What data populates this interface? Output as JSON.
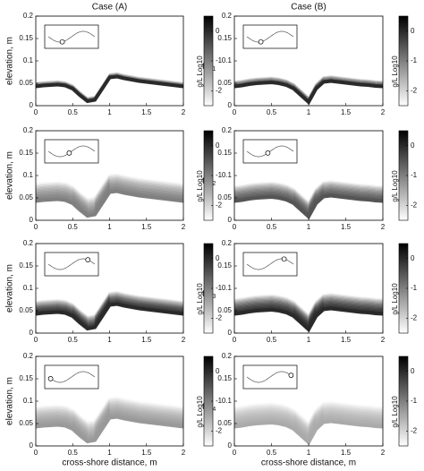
{
  "column_titles": [
    "Case (A)",
    "Case (B)"
  ],
  "time_labels": [
    {
      "main": "t=t",
      "sub": "1"
    },
    {
      "main": "t=t",
      "sub": "2"
    },
    {
      "main": "t=t",
      "sub": "3"
    },
    {
      "main": "t=t",
      "sub": "4"
    }
  ],
  "ylabel": "elevation, m",
  "xlabel": "cross-shore distance, m",
  "chart_data": [
    {
      "type": "density",
      "xlim": [
        0,
        2
      ],
      "xticks": [
        0,
        0.5,
        1,
        1.5,
        2
      ],
      "ylim": [
        0,
        0.2
      ],
      "yticks": [
        0,
        0.05,
        0.1,
        0.15,
        0.2
      ],
      "x": [
        0,
        0.1,
        0.2,
        0.3,
        0.4,
        0.5,
        0.6,
        0.7,
        0.8,
        0.9,
        1,
        1.1,
        1.2,
        1.3,
        1.4,
        1.5,
        1.6,
        1.7,
        1.8,
        1.9,
        2
      ],
      "values": [
        0.04,
        0.042,
        0.043,
        0.044,
        0.042,
        0.035,
        0.02,
        0.007,
        0.01,
        0.035,
        0.06,
        0.062,
        0.058,
        0.055,
        0.052,
        0.05,
        0.048,
        0.046,
        0.044,
        0.042,
        0.04
      ],
      "spread": 0.012,
      "intensity": 0,
      "colorbar": {
        "lim": [
          -2.5,
          0.5
        ],
        "ticks": [
          0,
          -1,
          -2
        ],
        "label": "g/L Log10"
      }
    },
    {
      "type": "density",
      "xlim": [
        0,
        2
      ],
      "xticks": [
        0,
        0.5,
        1,
        1.5,
        2
      ],
      "ylim": [
        0,
        0.2
      ],
      "yticks": [
        0,
        0.05,
        0.1,
        0.15,
        0.2
      ],
      "x": [
        0,
        0.1,
        0.2,
        0.3,
        0.4,
        0.5,
        0.6,
        0.7,
        0.8,
        0.9,
        1,
        1.1,
        1.2,
        1.3,
        1.4,
        1.5,
        1.6,
        1.7,
        1.8,
        1.9,
        2
      ],
      "values": [
        0.04,
        0.042,
        0.045,
        0.047,
        0.048,
        0.049,
        0.047,
        0.043,
        0.035,
        0.02,
        0.005,
        0.035,
        0.05,
        0.052,
        0.05,
        0.048,
        0.046,
        0.044,
        0.043,
        0.041,
        0.04
      ],
      "spread": 0.015,
      "intensity": 0,
      "colorbar": {
        "lim": [
          -2.5,
          0.5
        ],
        "ticks": [
          0,
          -1,
          -2
        ],
        "label": "g/L Log10"
      }
    },
    {
      "type": "density",
      "xlim": [
        0,
        2
      ],
      "xticks": [
        0,
        0.5,
        1,
        1.5,
        2
      ],
      "ylim": [
        0,
        0.2
      ],
      "yticks": [
        0,
        0.05,
        0.1,
        0.15,
        0.2
      ],
      "x": [
        0,
        0.1,
        0.2,
        0.3,
        0.4,
        0.5,
        0.6,
        0.7,
        0.8,
        0.9,
        1,
        1.1,
        1.2,
        1.3,
        1.4,
        1.5,
        1.6,
        1.7,
        1.8,
        1.9,
        2
      ],
      "values": [
        0.04,
        0.042,
        0.043,
        0.044,
        0.042,
        0.035,
        0.02,
        0.007,
        0.01,
        0.035,
        0.06,
        0.062,
        0.058,
        0.055,
        0.052,
        0.05,
        0.048,
        0.046,
        0.044,
        0.042,
        0.04
      ],
      "spread": 0.04,
      "intensity": -1,
      "colorbar": {
        "lim": [
          -2.5,
          0.5
        ],
        "ticks": [
          0,
          -1,
          -2
        ],
        "label": "g/L Log10"
      }
    },
    {
      "type": "density",
      "xlim": [
        0,
        2
      ],
      "xticks": [
        0,
        0.5,
        1,
        1.5,
        2
      ],
      "ylim": [
        0,
        0.2
      ],
      "yticks": [
        0,
        0.05,
        0.1,
        0.15,
        0.2
      ],
      "x": [
        0,
        0.1,
        0.2,
        0.3,
        0.4,
        0.5,
        0.6,
        0.7,
        0.8,
        0.9,
        1,
        1.1,
        1.2,
        1.3,
        1.4,
        1.5,
        1.6,
        1.7,
        1.8,
        1.9,
        2
      ],
      "values": [
        0.04,
        0.042,
        0.045,
        0.047,
        0.048,
        0.049,
        0.047,
        0.043,
        0.035,
        0.02,
        0.005,
        0.035,
        0.05,
        0.052,
        0.05,
        0.048,
        0.046,
        0.044,
        0.043,
        0.041,
        0.04
      ],
      "spread": 0.035,
      "intensity": -0.5,
      "colorbar": {
        "lim": [
          -2.5,
          0.5
        ],
        "ticks": [
          0,
          -1,
          -2
        ],
        "label": "g/L Log10"
      }
    },
    {
      "type": "density",
      "xlim": [
        0,
        2
      ],
      "xticks": [
        0,
        0.5,
        1,
        1.5,
        2
      ],
      "ylim": [
        0,
        0.2
      ],
      "yticks": [
        0,
        0.05,
        0.1,
        0.15,
        0.2
      ],
      "x": [
        0,
        0.1,
        0.2,
        0.3,
        0.4,
        0.5,
        0.6,
        0.7,
        0.8,
        0.9,
        1,
        1.1,
        1.2,
        1.3,
        1.4,
        1.5,
        1.6,
        1.7,
        1.8,
        1.9,
        2
      ],
      "values": [
        0.04,
        0.042,
        0.043,
        0.044,
        0.042,
        0.035,
        0.02,
        0.007,
        0.01,
        0.035,
        0.06,
        0.062,
        0.058,
        0.055,
        0.052,
        0.05,
        0.048,
        0.046,
        0.044,
        0.042,
        0.04
      ],
      "spread": 0.03,
      "intensity": 0,
      "colorbar": {
        "lim": [
          -2.5,
          0.5
        ],
        "ticks": [
          0,
          -1,
          -2
        ],
        "label": "g/L Log10"
      }
    },
    {
      "type": "density",
      "xlim": [
        0,
        2
      ],
      "xticks": [
        0,
        0.5,
        1,
        1.5,
        2
      ],
      "ylim": [
        0,
        0.2
      ],
      "yticks": [
        0,
        0.05,
        0.1,
        0.15,
        0.2
      ],
      "x": [
        0,
        0.1,
        0.2,
        0.3,
        0.4,
        0.5,
        0.6,
        0.7,
        0.8,
        0.9,
        1,
        1.1,
        1.2,
        1.3,
        1.4,
        1.5,
        1.6,
        1.7,
        1.8,
        1.9,
        2
      ],
      "values": [
        0.04,
        0.042,
        0.045,
        0.047,
        0.048,
        0.049,
        0.047,
        0.043,
        0.035,
        0.02,
        0.005,
        0.035,
        0.05,
        0.052,
        0.05,
        0.048,
        0.046,
        0.044,
        0.043,
        0.041,
        0.04
      ],
      "spread": 0.035,
      "intensity": 0,
      "colorbar": {
        "lim": [
          -2.5,
          0.5
        ],
        "ticks": [
          0,
          -1,
          -2
        ],
        "label": "g/L Log10"
      }
    },
    {
      "type": "density",
      "xlim": [
        0,
        2
      ],
      "xticks": [
        0,
        0.5,
        1,
        1.5,
        2
      ],
      "ylim": [
        0,
        0.2
      ],
      "yticks": [
        0,
        0.05,
        0.1,
        0.15,
        0.2
      ],
      "x": [
        0,
        0.1,
        0.2,
        0.3,
        0.4,
        0.5,
        0.6,
        0.7,
        0.8,
        0.9,
        1,
        1.1,
        1.2,
        1.3,
        1.4,
        1.5,
        1.6,
        1.7,
        1.8,
        1.9,
        2
      ],
      "values": [
        0.04,
        0.042,
        0.043,
        0.044,
        0.042,
        0.035,
        0.02,
        0.007,
        0.01,
        0.035,
        0.06,
        0.062,
        0.058,
        0.055,
        0.052,
        0.05,
        0.048,
        0.046,
        0.044,
        0.042,
        0.04
      ],
      "spread": 0.045,
      "intensity": -1.3,
      "colorbar": {
        "lim": [
          -2.5,
          0.5
        ],
        "ticks": [
          0,
          -1,
          -2
        ],
        "label": "g/L Log10"
      }
    },
    {
      "type": "density",
      "xlim": [
        0,
        2
      ],
      "xticks": [
        0,
        0.5,
        1,
        1.5,
        2
      ],
      "ylim": [
        0,
        0.2
      ],
      "yticks": [
        0,
        0.05,
        0.1,
        0.15,
        0.2
      ],
      "x": [
        0,
        0.1,
        0.2,
        0.3,
        0.4,
        0.5,
        0.6,
        0.7,
        0.8,
        0.9,
        1,
        1.1,
        1.2,
        1.3,
        1.4,
        1.5,
        1.6,
        1.7,
        1.8,
        1.9,
        2
      ],
      "values": [
        0.04,
        0.042,
        0.045,
        0.047,
        0.048,
        0.049,
        0.047,
        0.043,
        0.035,
        0.02,
        0.005,
        0.035,
        0.05,
        0.052,
        0.05,
        0.048,
        0.046,
        0.044,
        0.043,
        0.041,
        0.04
      ],
      "spread": 0.045,
      "intensity": -1.5,
      "colorbar": {
        "lim": [
          -2.5,
          0.5
        ],
        "ticks": [
          0,
          -1,
          -2
        ],
        "label": "g/L Log10"
      }
    }
  ]
}
